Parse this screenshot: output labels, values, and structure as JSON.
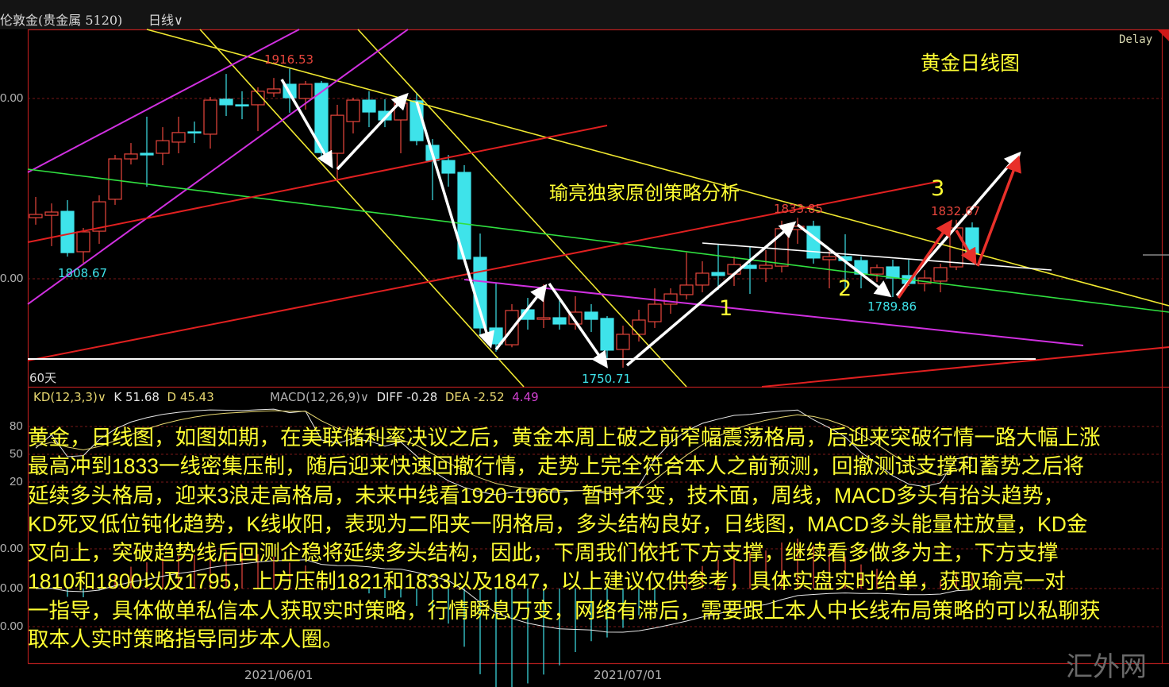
{
  "header": {
    "instrument": "伦敦金(贵金属 5120)",
    "period_label": "日线",
    "period_icon": "chevron-down-icon",
    "delay_label": "Delay"
  },
  "overlay": {
    "chart_title": "黄金日线图",
    "strategy_caption": "瑜亮独家原创策略分析",
    "wave_labels": [
      "1",
      "2",
      "3"
    ],
    "range_label": "60天",
    "watermark": "汇外网",
    "paragraph_lines": [
      "黄金，日线图，如图如期，在美联储利率决议之后，黄金本周上破之前窄幅震荡格局，后迎来突破行情一路大幅上涨",
      "最高冲到1833一线密集压制，随后迎来快速回撤行情，走势上完全符合本人之前预测，回撤测试支撑和蓄势之后将",
      "延续多头格局，迎来3浪走高格局，未来中线看1920-1960，暂时不变，技术面，周线，MACD多头有抬头趋势，",
      "KD死叉低位钝化趋势，K线收阳，表现为二阳夹一阴格局，多头结构良好，日线图，MACD多头能量柱放量，KD金",
      "叉向上，突破趋势线后回测企稳将延续多头结构，因此，下周我们依托下方支撑，继续看多做多为主，下方支撑",
      "1810和1800以及1795，上方压制1821和1833以及1847，以上建议仅供参考，具体实盘实时给单，获取瑜亮一对",
      "一指导，具体做单私信本人获取实时策略，行情瞬息万变，网络有滞后，需要跟上本人中长线布局策略的可以私聊获",
      "取本人实时策略指导同步本人圈。"
    ]
  },
  "kd": {
    "label": "KD(12,3,3)",
    "k_label": "K",
    "k_value": "51.68",
    "d_label": "D",
    "d_value": "45.43",
    "ticks": [
      "80",
      "50",
      "20"
    ]
  },
  "macd": {
    "label": "MACD(12,26,9)",
    "diff_label": "DIFF",
    "diff_value": "-0.28",
    "dea_label": "DEA",
    "dea_value": "-2.52",
    "macd_value": "4.49",
    "ticks": [
      "0.00",
      "0.00",
      "0.00"
    ]
  },
  "colors": {
    "up": "#e8463c",
    "down": "#3ee3ea",
    "text_overlay": "#ffff33",
    "background": "#000000"
  },
  "chart_data": {
    "type": "candlestick",
    "title": "黄金日线图",
    "price_ticks": [
      "0.00",
      "0.00"
    ],
    "x_ticks": [
      "2021/06/01",
      "2021/07/01"
    ],
    "ylim": [
      1740,
      1935
    ],
    "grid": "dashed-horizontal",
    "candles_ohlc": [
      [
        1833.9,
        1845.4,
        1830.0,
        1835.7
      ],
      [
        1835.2,
        1841.8,
        1818.1,
        1837.0
      ],
      [
        1837.4,
        1843.6,
        1812.3,
        1814.5
      ],
      [
        1815.0,
        1828.2,
        1808.67,
        1826.0
      ],
      [
        1826.4,
        1846.3,
        1819.4,
        1842.7
      ],
      [
        1844.1,
        1868.7,
        1841.0,
        1866.5
      ],
      [
        1866.5,
        1875.3,
        1863.4,
        1869.2
      ],
      [
        1869.6,
        1889.9,
        1851.1,
        1868.7
      ],
      [
        1869.6,
        1884.1,
        1863.0,
        1876.6
      ],
      [
        1875.8,
        1889.9,
        1869.6,
        1881.1
      ],
      [
        1881.5,
        1887.2,
        1875.3,
        1881.1
      ],
      [
        1880.2,
        1900.9,
        1872.2,
        1899.1
      ],
      [
        1899.6,
        1913.6,
        1890.3,
        1896.5
      ],
      [
        1896.5,
        1904.0,
        1888.5,
        1896.0
      ],
      [
        1896.5,
        1906.2,
        1881.9,
        1904.0
      ],
      [
        1903.1,
        1911.4,
        1900.9,
        1905.3
      ],
      [
        1907.9,
        1916.53,
        1892.1,
        1900.4
      ],
      [
        1900.0,
        1909.7,
        1893.8,
        1907.9
      ],
      [
        1908.4,
        1909.7,
        1865.2,
        1870.0
      ],
      [
        1869.6,
        1896.5,
        1855.5,
        1890.7
      ],
      [
        1887.2,
        1900.4,
        1880.6,
        1899.1
      ],
      [
        1899.1,
        1904.0,
        1884.1,
        1892.5
      ],
      [
        1892.9,
        1899.6,
        1884.1,
        1888.1
      ],
      [
        1888.1,
        1900.4,
        1869.6,
        1897.4
      ],
      [
        1898.7,
        1902.6,
        1874.0,
        1876.6
      ],
      [
        1874.0,
        1877.5,
        1843.6,
        1865.6
      ],
      [
        1865.6,
        1868.7,
        1851.1,
        1858.6
      ],
      [
        1859.0,
        1863.0,
        1811.0,
        1811.0
      ],
      [
        1811.9,
        1825.1,
        1768.3,
        1772.7
      ],
      [
        1772.7,
        1797.4,
        1759.5,
        1763.9
      ],
      [
        1763.4,
        1785.9,
        1762.0,
        1782.4
      ],
      [
        1782.8,
        1789.4,
        1771.8,
        1777.5
      ],
      [
        1777.5,
        1796.9,
        1772.7,
        1778.4
      ],
      [
        1778.4,
        1789.4,
        1771.8,
        1774.9
      ],
      [
        1774.9,
        1790.3,
        1771.8,
        1781.5
      ],
      [
        1781.5,
        1785.9,
        1770.5,
        1777.5
      ],
      [
        1778.0,
        1779.3,
        1755.5,
        1760.4
      ],
      [
        1760.8,
        1774.0,
        1750.71,
        1769.2
      ],
      [
        1769.2,
        1782.8,
        1765.2,
        1777.1
      ],
      [
        1776.2,
        1794.7,
        1772.7,
        1785.9
      ],
      [
        1785.9,
        1794.7,
        1780.6,
        1791.6
      ],
      [
        1791.2,
        1814.5,
        1788.5,
        1796.5
      ],
      [
        1796.5,
        1809.7,
        1792.5,
        1803.1
      ],
      [
        1803.5,
        1818.9,
        1793.8,
        1801.8
      ],
      [
        1802.6,
        1812.3,
        1796.0,
        1807.9
      ],
      [
        1807.5,
        1818.1,
        1791.6,
        1805.7
      ],
      [
        1805.7,
        1815.9,
        1798.2,
        1807.5
      ],
      [
        1807.0,
        1832.2,
        1803.5,
        1827.8
      ],
      [
        1827.3,
        1833.85,
        1819.4,
        1829.1
      ],
      [
        1829.1,
        1832.2,
        1808.4,
        1811.5
      ],
      [
        1810.6,
        1816.7,
        1794.7,
        1812.3
      ],
      [
        1812.3,
        1824.7,
        1794.7,
        1810.1
      ],
      [
        1810.1,
        1812.3,
        1794.7,
        1802.6
      ],
      [
        1802.6,
        1807.9,
        1798.2,
        1806.2
      ],
      [
        1806.6,
        1810.6,
        1789.86,
        1800.4
      ],
      [
        1801.8,
        1810.6,
        1796.0,
        1797.4
      ],
      [
        1797.4,
        1804.8,
        1793.0,
        1800.4
      ],
      [
        1798.7,
        1808.4,
        1792.5,
        1806.2
      ],
      [
        1806.6,
        1832.67,
        1804.8,
        1828.2
      ],
      [
        1828.2,
        1831.3,
        1812.3,
        1813.7
      ]
    ],
    "annotations": [
      {
        "text": "1916.53",
        "kind": "high"
      },
      {
        "text": "1808.67",
        "kind": "low"
      },
      {
        "text": "1750.71",
        "kind": "low"
      },
      {
        "text": "1833.85",
        "kind": "high"
      },
      {
        "text": "1789.86",
        "kind": "low"
      },
      {
        "text": "1832.67",
        "kind": "high"
      }
    ]
  }
}
